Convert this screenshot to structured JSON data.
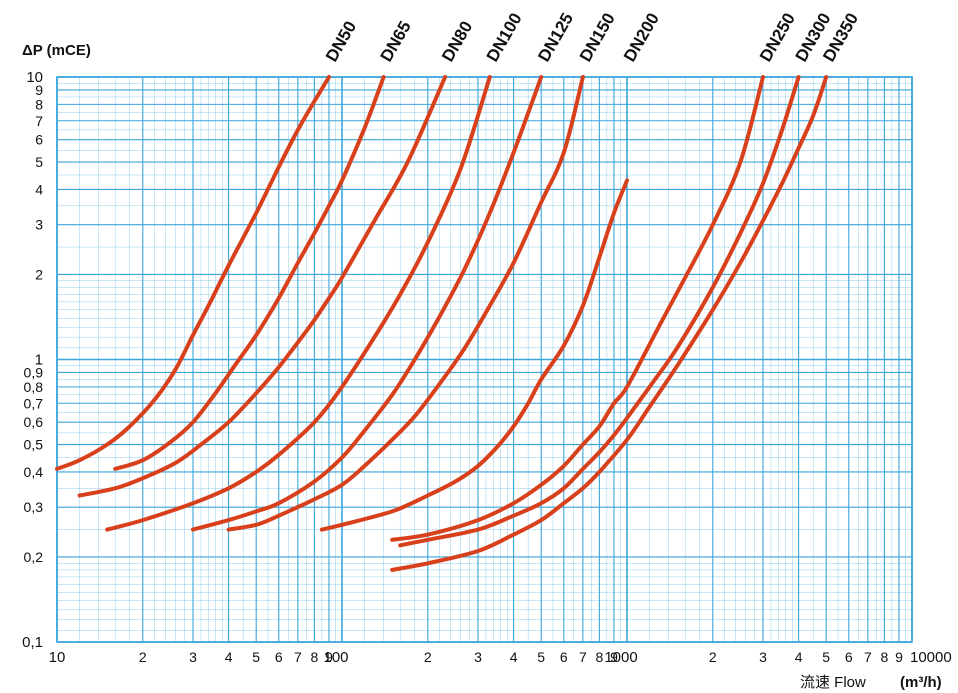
{
  "chart_data": {
    "type": "line",
    "title": "",
    "ylabel": "ΔP (mCE)",
    "xlabel": "流速 Flow",
    "xunit": "(m³/h)",
    "xscale": "log",
    "yscale": "log",
    "xlim": [
      10,
      10000
    ],
    "ylim": [
      0.1,
      10
    ],
    "grid": true,
    "colors": {
      "grid": "#3aa6dc",
      "line": "#d8401c",
      "text": "#111111"
    },
    "xticks": [
      {
        "v": 10,
        "label": "10",
        "major": true
      },
      {
        "v": 20,
        "label": "2"
      },
      {
        "v": 30,
        "label": "3"
      },
      {
        "v": 40,
        "label": "4"
      },
      {
        "v": 50,
        "label": "5"
      },
      {
        "v": 60,
        "label": "6"
      },
      {
        "v": 70,
        "label": "7"
      },
      {
        "v": 80,
        "label": "8"
      },
      {
        "v": 90,
        "label": "9"
      },
      {
        "v": 100,
        "label": "100",
        "major": true
      },
      {
        "v": 200,
        "label": "2"
      },
      {
        "v": 300,
        "label": "3"
      },
      {
        "v": 400,
        "label": "4"
      },
      {
        "v": 500,
        "label": "5"
      },
      {
        "v": 600,
        "label": "6"
      },
      {
        "v": 700,
        "label": "7"
      },
      {
        "v": 800,
        "label": "8"
      },
      {
        "v": 900,
        "label": "9"
      },
      {
        "v": 1000,
        "label": "1000",
        "major": true
      },
      {
        "v": 2000,
        "label": "2"
      },
      {
        "v": 3000,
        "label": "3"
      },
      {
        "v": 4000,
        "label": "4"
      },
      {
        "v": 5000,
        "label": "5"
      },
      {
        "v": 6000,
        "label": "6"
      },
      {
        "v": 7000,
        "label": "7"
      },
      {
        "v": 8000,
        "label": "8"
      },
      {
        "v": 9000,
        "label": "9"
      },
      {
        "v": 10000,
        "label": "10000",
        "major": true
      }
    ],
    "yticks": [
      {
        "v": 0.1,
        "label": "0,1",
        "major": true
      },
      {
        "v": 0.2,
        "label": "0,2"
      },
      {
        "v": 0.3,
        "label": "0,3"
      },
      {
        "v": 0.4,
        "label": "0,4"
      },
      {
        "v": 0.5,
        "label": "0,5"
      },
      {
        "v": 0.6,
        "label": "0,6"
      },
      {
        "v": 0.7,
        "label": "0,7"
      },
      {
        "v": 0.8,
        "label": "0,8"
      },
      {
        "v": 0.9,
        "label": "0,9"
      },
      {
        "v": 1,
        "label": "1",
        "major": true
      },
      {
        "v": 2,
        "label": "2"
      },
      {
        "v": 3,
        "label": "3"
      },
      {
        "v": 4,
        "label": "4"
      },
      {
        "v": 5,
        "label": "5"
      },
      {
        "v": 6,
        "label": "6"
      },
      {
        "v": 7,
        "label": "7"
      },
      {
        "v": 8,
        "label": "8"
      },
      {
        "v": 9,
        "label": "9"
      },
      {
        "v": 10,
        "label": "10",
        "major": true
      }
    ],
    "series": [
      {
        "name": "DN50",
        "x": [
          10,
          12,
          15,
          18,
          22,
          26,
          30,
          34,
          40,
          50,
          60,
          70,
          80,
          90
        ],
        "y": [
          0.41,
          0.44,
          0.5,
          0.58,
          0.72,
          0.92,
          1.22,
          1.55,
          2.15,
          3.3,
          4.8,
          6.5,
          8.2,
          10
        ]
      },
      {
        "name": "DN65",
        "x": [
          16,
          20,
          25,
          30,
          36,
          42,
          50,
          60,
          70,
          80,
          90,
          100,
          120,
          140
        ],
        "y": [
          0.41,
          0.44,
          0.51,
          0.6,
          0.76,
          0.95,
          1.22,
          1.65,
          2.2,
          2.8,
          3.5,
          4.3,
          6.6,
          10
        ]
      },
      {
        "name": "DN80",
        "x": [
          12,
          16,
          20,
          26,
          32,
          40,
          50,
          60,
          70,
          80,
          90,
          100,
          130,
          170,
          230
        ],
        "y": [
          0.33,
          0.35,
          0.38,
          0.43,
          0.5,
          0.6,
          0.76,
          0.94,
          1.15,
          1.38,
          1.65,
          1.95,
          3.1,
          5.0,
          10
        ]
      },
      {
        "name": "DN100",
        "x": [
          15,
          20,
          30,
          40,
          50,
          60,
          80,
          100,
          130,
          160,
          200,
          260,
          330
        ],
        "y": [
          0.25,
          0.27,
          0.31,
          0.35,
          0.4,
          0.46,
          0.6,
          0.8,
          1.2,
          1.7,
          2.6,
          4.7,
          10
        ]
      },
      {
        "name": "DN125",
        "x": [
          30,
          40,
          50,
          60,
          80,
          100,
          120,
          150,
          180,
          220,
          270,
          330,
          400,
          500
        ],
        "y": [
          0.25,
          0.27,
          0.29,
          0.31,
          0.37,
          0.45,
          0.56,
          0.75,
          1.0,
          1.42,
          2.1,
          3.3,
          5.4,
          10
        ]
      },
      {
        "name": "DN150",
        "x": [
          40,
          50,
          60,
          80,
          100,
          120,
          150,
          180,
          220,
          270,
          330,
          400,
          500,
          600,
          700
        ],
        "y": [
          0.25,
          0.26,
          0.28,
          0.32,
          0.36,
          0.42,
          0.52,
          0.63,
          0.82,
          1.1,
          1.55,
          2.2,
          3.6,
          5.4,
          10
        ]
      },
      {
        "name": "DN200",
        "x": [
          85,
          100,
          150,
          200,
          250,
          300,
          350,
          400,
          450,
          500,
          600,
          700,
          800,
          900,
          1000
        ],
        "y": [
          0.25,
          0.26,
          0.29,
          0.33,
          0.37,
          0.42,
          0.49,
          0.58,
          0.7,
          0.85,
          1.12,
          1.55,
          2.3,
          3.3,
          4.3
        ]
      },
      {
        "name": "DN250",
        "x": [
          150,
          200,
          300,
          400,
          500,
          600,
          700,
          800,
          900,
          1000,
          1300,
          1600,
          2000,
          2500,
          3000
        ],
        "y": [
          0.23,
          0.24,
          0.27,
          0.31,
          0.36,
          0.42,
          0.5,
          0.58,
          0.7,
          0.8,
          1.32,
          1.95,
          3.0,
          5.0,
          10
        ]
      },
      {
        "name": "DN300",
        "x": [
          160,
          200,
          300,
          400,
          500,
          600,
          700,
          800,
          900,
          1000,
          1200,
          1500,
          2000,
          2500,
          3000,
          3500,
          4000
        ],
        "y": [
          0.22,
          0.23,
          0.25,
          0.28,
          0.31,
          0.35,
          0.41,
          0.47,
          0.54,
          0.62,
          0.8,
          1.1,
          1.8,
          2.8,
          4.2,
          6.5,
          10
        ]
      },
      {
        "name": "DN350",
        "x": [
          150,
          200,
          300,
          400,
          500,
          600,
          700,
          800,
          1000,
          1200,
          1500,
          2000,
          2500,
          3000,
          3500,
          4000,
          4500,
          5000
        ],
        "y": [
          0.18,
          0.19,
          0.21,
          0.24,
          0.27,
          0.31,
          0.35,
          0.4,
          0.52,
          0.68,
          0.95,
          1.5,
          2.2,
          3.1,
          4.2,
          5.6,
          7.3,
          10
        ]
      }
    ]
  }
}
